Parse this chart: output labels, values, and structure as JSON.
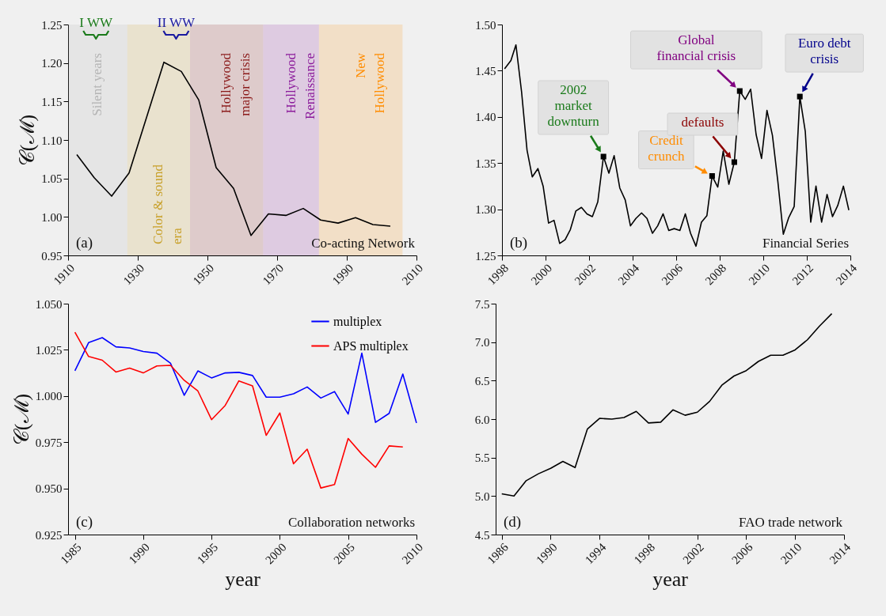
{
  "chart_data": [
    {
      "type": "line",
      "ylabel": "𝒞(ℳ)",
      "x": [
        1912.5,
        1917.5,
        1922.5,
        1927.5,
        1932.5,
        1937.5,
        1942.5,
        1947.5,
        1952.5,
        1957.5,
        1962.5,
        1967.5,
        1972.5,
        1977.5,
        1982.5,
        1987.5,
        1992.5,
        1997.5,
        2002.5
      ],
      "series": [
        {
          "color": "#000000",
          "values": [
            1.081,
            1.051,
            1.027,
            1.057,
            1.129,
            1.201,
            1.189,
            1.152,
            1.064,
            1.037,
            0.976,
            1.004,
            1.002,
            1.011,
            0.996,
            0.992,
            0.999,
            0.99,
            0.988
          ]
        }
      ],
      "xlim": [
        1910,
        2010
      ],
      "ylim": [
        0.95,
        1.25
      ],
      "xticks": [
        1910,
        1930,
        1950,
        1970,
        1990,
        2010
      ],
      "yticks": [
        0.95,
        {
          "value": 1.0,
          "label": "1.00"
        },
        1.05,
        {
          "value": 1.1,
          "label": "1.10"
        },
        1.15,
        {
          "value": 1.2,
          "label": "1.20"
        },
        1.25
      ],
      "bands": [
        {
          "axis": "x",
          "from": 1910,
          "to": 1927,
          "label": "Silent years",
          "color": "#b4b4b4"
        },
        {
          "axis": "x",
          "from": 1927,
          "to": 1945,
          "label": "Color & sound\nera",
          "color": "#c8a02a"
        },
        {
          "axis": "x",
          "from": 1945,
          "to": 1966,
          "label": "Hollywood\nmajor crisis",
          "color": "#8b1a1a"
        },
        {
          "axis": "x",
          "from": 1966,
          "to": 1982,
          "label": "Hollywood\nRenaissance",
          "color": "#8b1a9b"
        },
        {
          "axis": "x",
          "from": 1982,
          "to": 2006,
          "label": "New\nHollywood",
          "color": "#ff8c00"
        }
      ],
      "annotations": [
        {
          "text": "I WW",
          "x": 1918,
          "y": 1.25
        },
        {
          "text": "II WW",
          "x": 1941,
          "y": 1.25
        },
        "(a)",
        "Co-acting Network"
      ]
    },
    {
      "type": "line",
      "x": [
        1998.12,
        1998.41,
        1998.64,
        1998.9,
        1999.15,
        1999.39,
        1999.65,
        1999.89,
        2000.14,
        2000.39,
        2000.65,
        2000.9,
        2001.14,
        2001.39,
        2001.65,
        2001.9,
        2002.15,
        2002.4,
        2002.66,
        2002.91,
        2003.15,
        2003.41,
        2003.66,
        2003.9,
        2004.15,
        2004.41,
        2004.66,
        2004.91,
        2005.15,
        2005.4,
        2005.66,
        2005.91,
        2006.17,
        2006.42,
        2006.66,
        2006.91,
        2007.16,
        2007.41,
        2007.65,
        2007.91,
        2008.16,
        2008.42,
        2008.67,
        2008.92,
        2009.17,
        2009.42,
        2009.67,
        2009.92,
        2010.17,
        2010.42,
        2010.67,
        2010.92,
        2011.17,
        2011.42,
        2011.68,
        2011.93,
        2012.18,
        2012.42,
        2012.68,
        2012.93,
        2013.18,
        2013.42,
        2013.68,
        2013.93
      ],
      "series": [
        {
          "color": "#000000",
          "values": [
            1.452,
            1.461,
            1.478,
            1.427,
            1.364,
            1.335,
            1.344,
            1.325,
            1.285,
            1.288,
            1.263,
            1.267,
            1.278,
            1.298,
            1.302,
            1.295,
            1.292,
            1.308,
            1.357,
            1.339,
            1.358,
            1.323,
            1.31,
            1.282,
            1.29,
            1.296,
            1.29,
            1.274,
            1.282,
            1.295,
            1.277,
            1.279,
            1.277,
            1.295,
            1.274,
            1.26,
            1.286,
            1.293,
            1.336,
            1.324,
            1.363,
            1.327,
            1.351,
            1.428,
            1.419,
            1.43,
            1.381,
            1.355,
            1.407,
            1.38,
            1.33,
            1.273,
            1.291,
            1.303,
            1.422,
            1.384,
            1.286,
            1.325,
            1.286,
            1.316,
            1.292,
            1.304,
            1.325,
            1.299
          ]
        }
      ],
      "xlim": [
        1998,
        2014
      ],
      "ylim": [
        1.25,
        1.5
      ],
      "xticks": [
        1998,
        2000,
        2002,
        2004,
        2006,
        2008,
        2010,
        2012,
        2014
      ],
      "yticks": [
        1.25,
        {
          "value": 1.3,
          "label": "1.30"
        },
        1.35,
        {
          "value": 1.4,
          "label": "1.40"
        },
        1.45,
        {
          "value": 1.5,
          "label": "1.50"
        }
      ],
      "annotations": [
        {
          "text": "2002\nmarket\ndownturn",
          "x": 2002.66,
          "y": 1.357
        },
        {
          "text": "Credit\ncrunch",
          "x": 2007.65,
          "y": 1.336
        },
        {
          "text": "defaults",
          "x": 2008.67,
          "y": 1.351
        },
        {
          "text": "Global\nfinancial crisis",
          "x": 2008.92,
          "y": 1.428
        },
        {
          "text": "Euro debt\ncrisis",
          "x": 2011.68,
          "y": 1.422
        },
        "(b)",
        "Financial Series"
      ]
    },
    {
      "type": "line",
      "ylabel": "𝒞(ℳ)",
      "xlabel": "year",
      "legend": "top right",
      "x": [
        1985,
        1986,
        1987,
        1988,
        1989,
        1990,
        1991,
        1992,
        1993,
        1994,
        1995,
        1996,
        1997,
        1998,
        1999,
        2000,
        2001,
        2002,
        2003,
        2004,
        2005,
        2006,
        2007,
        2008,
        2009,
        2010
      ],
      "series": [
        {
          "name": "multiplex",
          "color": "#0000ff",
          "values": [
            1.0137,
            1.0289,
            1.0316,
            1.0266,
            1.026,
            1.0241,
            1.0232,
            1.0177,
            1.0004,
            1.0136,
            1.0098,
            1.0125,
            1.0128,
            1.0111,
            0.9994,
            0.9994,
            1.0012,
            1.0049,
            0.9989,
            1.0024,
            0.9902,
            1.0232,
            0.9857,
            0.9906,
            1.0119,
            0.9854
          ]
        },
        {
          "name": "APS multiplex",
          "color": "#ff0000",
          "values": [
            1.0345,
            1.0214,
            1.0194,
            1.013,
            1.0151,
            1.0125,
            1.0163,
            1.0166,
            1.0085,
            1.0027,
            0.9872,
            0.9949,
            1.0082,
            1.0055,
            0.9787,
            0.9908,
            0.9633,
            0.9712,
            0.9502,
            0.9521,
            0.977,
            0.9685,
            0.9614,
            0.973,
            0.9724,
            null
          ]
        }
      ],
      "xlim": [
        1984.5,
        2010
      ],
      "ylim": [
        0.925,
        1.05
      ],
      "xticks": [
        1985,
        1990,
        1995,
        2000,
        2005,
        2010
      ],
      "yticks": [
        0.925,
        {
          "value": 0.95,
          "label": "0.950"
        },
        0.975,
        {
          "value": 1.0,
          "label": "1.000"
        },
        1.025,
        {
          "value": 1.05,
          "label": "1.050"
        }
      ],
      "annotations": [
        "(c)",
        "Collaboration networks"
      ]
    },
    {
      "type": "line",
      "xlabel": "year",
      "x": [
        1986,
        1987,
        1988,
        1989,
        1990,
        1991,
        1992,
        1993,
        1994,
        1995,
        1996,
        1997,
        1998,
        1999,
        2000,
        2001,
        2002,
        2003,
        2004,
        2005,
        2006,
        2007,
        2008,
        2009,
        2010,
        2011,
        2012,
        2013
      ],
      "series": [
        {
          "color": "#000000",
          "values": [
            5.03,
            5.0,
            5.2,
            5.29,
            5.36,
            5.45,
            5.37,
            5.87,
            6.01,
            6.0,
            6.02,
            6.1,
            5.95,
            5.96,
            6.12,
            6.05,
            6.09,
            6.23,
            6.44,
            6.56,
            6.63,
            6.75,
            6.83,
            6.83,
            6.9,
            7.03,
            7.21,
            7.37
          ]
        }
      ],
      "xlim": [
        1985.5,
        2014
      ],
      "ylim": [
        4.5,
        7.5
      ],
      "xticks": [
        1986,
        1990,
        1994,
        1998,
        2002,
        2006,
        2010,
        2014
      ],
      "yticks": [
        4.5,
        {
          "value": 5,
          "label": "5.0"
        },
        5.5,
        {
          "value": 6,
          "label": "6.0"
        },
        6.5,
        {
          "value": 7,
          "label": "7.0"
        },
        7.5
      ],
      "annotations": [
        "(d)",
        "FAO trade network"
      ]
    }
  ]
}
